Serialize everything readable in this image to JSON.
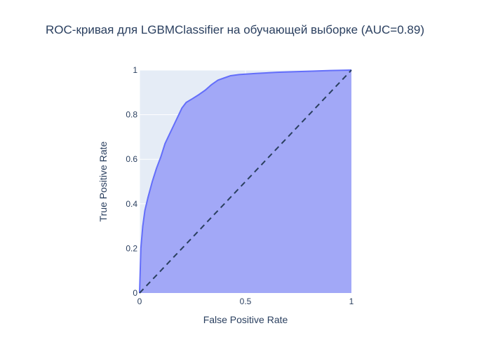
{
  "chart_data": {
    "type": "area",
    "title": "ROC-кривая для LGBMClassifier на обучающей выборке (AUC=0.89)",
    "xlabel": "False Positive Rate",
    "ylabel": "True Positive Rate",
    "xlim": [
      0,
      1
    ],
    "ylim": [
      0,
      1
    ],
    "x_ticks": [
      {
        "value": 0,
        "label": "0"
      },
      {
        "value": 0.5,
        "label": "0.5"
      },
      {
        "value": 1,
        "label": "1"
      }
    ],
    "y_ticks": [
      {
        "value": 0,
        "label": "0"
      },
      {
        "value": 0.2,
        "label": "0.2"
      },
      {
        "value": 0.4,
        "label": "0.4"
      },
      {
        "value": 0.6,
        "label": "0.6"
      },
      {
        "value": 0.8,
        "label": "0.8"
      },
      {
        "value": 1,
        "label": "1"
      }
    ],
    "grid": true,
    "series": [
      {
        "type": "area",
        "values": [
          [
            0,
            0
          ],
          [
            0.003,
            0.1
          ],
          [
            0.006,
            0.2
          ],
          [
            0.015,
            0.3
          ],
          [
            0.025,
            0.37
          ],
          [
            0.04,
            0.43
          ],
          [
            0.06,
            0.5
          ],
          [
            0.08,
            0.56
          ],
          [
            0.1,
            0.61
          ],
          [
            0.12,
            0.67
          ],
          [
            0.14,
            0.71
          ],
          [
            0.16,
            0.75
          ],
          [
            0.18,
            0.79
          ],
          [
            0.2,
            0.83
          ],
          [
            0.22,
            0.855
          ],
          [
            0.25,
            0.872
          ],
          [
            0.28,
            0.89
          ],
          [
            0.31,
            0.91
          ],
          [
            0.34,
            0.935
          ],
          [
            0.37,
            0.955
          ],
          [
            0.4,
            0.965
          ],
          [
            0.43,
            0.975
          ],
          [
            0.47,
            0.98
          ],
          [
            0.55,
            0.985
          ],
          [
            0.65,
            0.99
          ],
          [
            0.8,
            0.995
          ],
          [
            0.9,
            0.998
          ],
          [
            1,
            1
          ]
        ],
        "color": "#636efa",
        "fill_color": "#a2a8f7"
      },
      {
        "type": "line",
        "style": "dashed",
        "values": [
          [
            0,
            0
          ],
          [
            1,
            1
          ]
        ],
        "color": "#2a3f5f"
      }
    ],
    "colors": {
      "plot_background": "#e5ecf6",
      "grid": "#ffffff",
      "text": "#2a3f5f"
    }
  }
}
